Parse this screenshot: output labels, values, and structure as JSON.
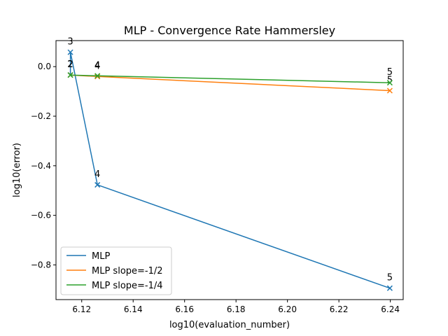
{
  "chart_data": {
    "type": "line",
    "title": "MLP - Convergence Rate Hammersley",
    "xlabel": "log10(evaluation_number)",
    "ylabel": "log10(error)",
    "xlim": [
      6.11,
      6.245
    ],
    "ylim": [
      -0.94,
      0.105
    ],
    "xticks": [
      "6.12",
      "6.14",
      "6.16",
      "6.18",
      "6.20",
      "6.22",
      "6.24"
    ],
    "yticks": [
      "−0.8",
      "−0.6",
      "−0.4",
      "−0.2",
      "0.0"
    ],
    "grid": false,
    "legend_position": "lower-left",
    "series": [
      {
        "name": "MLP",
        "color": "#1f77b4",
        "marker": "x",
        "x": [
          6.1156,
          6.1156,
          6.1261,
          6.2398
        ],
        "y": [
          -0.034,
          0.058,
          -0.477,
          -0.894
        ],
        "labels": [
          "2",
          "3",
          "4",
          "5"
        ]
      },
      {
        "name": "MLP slope=-1/2",
        "color": "#ff7f0e",
        "marker": "x",
        "x": [
          6.1156,
          6.1261,
          6.2398
        ],
        "y": [
          -0.034,
          -0.04,
          -0.097
        ],
        "labels": [
          "2",
          "4",
          "5"
        ]
      },
      {
        "name": "MLP slope=-1/4",
        "color": "#2ca02c",
        "marker": "x",
        "x": [
          6.1156,
          6.1261,
          6.2398
        ],
        "y": [
          -0.034,
          -0.037,
          -0.065
        ],
        "labels": [
          "2",
          "4",
          "5"
        ]
      }
    ]
  }
}
